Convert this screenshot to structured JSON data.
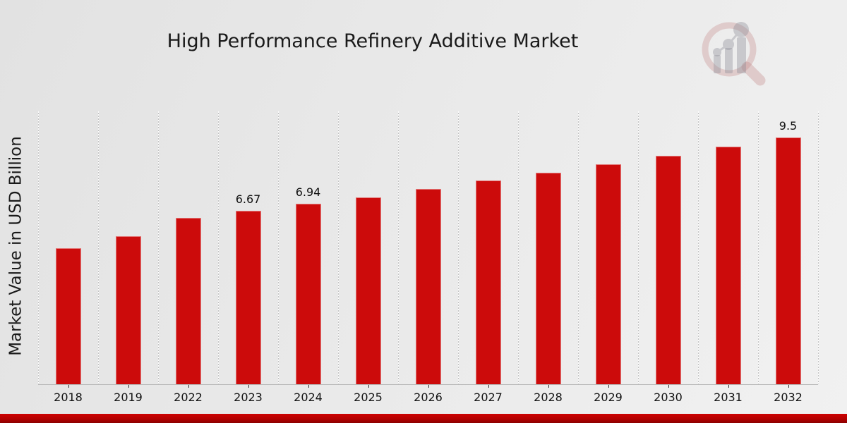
{
  "title": "High Performance Refinery Additive Market",
  "ylabel": "Market Value in USD Billion",
  "logo": {
    "name": "bar-chart-magnifier-watermark"
  },
  "colors": {
    "bar": "#cc0b0b",
    "banner_top": "#cd0202",
    "banner_bottom": "#8b0000",
    "background": "#e9e9e9",
    "text": "#1a1a1a"
  },
  "chart_data": {
    "type": "bar",
    "title": "High Performance Refinery Additive Market",
    "xlabel": "",
    "ylabel": "Market Value in USD Billion",
    "categories": [
      "2018",
      "2019",
      "2022",
      "2023",
      "2024",
      "2025",
      "2026",
      "2027",
      "2028",
      "2029",
      "2030",
      "2031",
      "2032"
    ],
    "values": [
      5.24,
      5.71,
      6.39,
      6.67,
      6.94,
      7.2,
      7.51,
      7.83,
      8.15,
      8.47,
      8.8,
      9.15,
      9.5
    ],
    "bar_labels": {
      "2023": "6.67",
      "2024": "6.94",
      "2032": "9.5"
    },
    "ylim": [
      0,
      10.5
    ],
    "y_tick_labels": "none",
    "grid": "vertical-dashed",
    "legend": "none",
    "bar_color": "#cc0b0b"
  }
}
